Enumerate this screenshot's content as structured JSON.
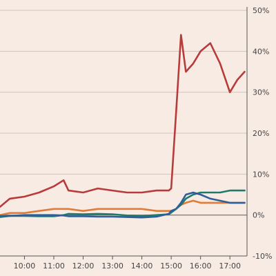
{
  "chart_data": {
    "type": "line",
    "title": "",
    "xlabel": "",
    "ylabel": "",
    "background": "#f8ebe4",
    "x_ticks": [
      "10:00",
      "11:00",
      "12:00",
      "13:00",
      "14:00",
      "15:00",
      "16:00",
      "17:00"
    ],
    "y_ticks": [
      "50%",
      "40%",
      "30%",
      "20%",
      "10%",
      "0%",
      "-10%"
    ],
    "xlim": [
      "09:10",
      "17:35"
    ],
    "ylim": [
      -10,
      50
    ],
    "y_axis_side": "right",
    "grid": "horizontal",
    "x": [
      "09:10",
      "09:30",
      "10:00",
      "10:30",
      "11:00",
      "11:20",
      "11:30",
      "12:00",
      "12:30",
      "13:00",
      "13:30",
      "14:00",
      "14:30",
      "14:55",
      "15:00",
      "15:10",
      "15:20",
      "15:30",
      "15:45",
      "16:00",
      "16:20",
      "16:40",
      "17:00",
      "17:15",
      "17:30"
    ],
    "series": [
      {
        "color": "#b83a3a",
        "values": [
          2,
          4,
          4.5,
          5.5,
          7,
          8.5,
          6,
          5.5,
          6.5,
          6,
          5.5,
          5.5,
          6,
          6,
          6.5,
          25,
          44,
          35,
          37,
          40,
          42,
          37,
          30,
          33,
          35
        ]
      },
      {
        "color": "#e07b39",
        "values": [
          0,
          0.5,
          0.5,
          1,
          1.5,
          1.5,
          1.5,
          1,
          1.5,
          1.5,
          1.5,
          1.5,
          1,
          1,
          1,
          1.5,
          2.5,
          3,
          3.5,
          3,
          3,
          3,
          3,
          3,
          3
        ]
      },
      {
        "color": "#1f7a6e",
        "values": [
          -0.5,
          -0.2,
          -0.2,
          -0.3,
          -0.3,
          0,
          0.3,
          0.2,
          0.3,
          0.2,
          -0.1,
          -0.2,
          0,
          0.2,
          0.6,
          1.5,
          2.5,
          4,
          5,
          5.5,
          5.5,
          5.5,
          6,
          6,
          6
        ]
      },
      {
        "color": "#2f5f98",
        "values": [
          -0.2,
          -0.2,
          0,
          0,
          0,
          -0.1,
          -0.3,
          -0.3,
          -0.4,
          -0.4,
          -0.5,
          -0.6,
          -0.4,
          0.3,
          1,
          1.5,
          3,
          5,
          5.5,
          5,
          4,
          3.5,
          3,
          3,
          3
        ]
      }
    ]
  }
}
